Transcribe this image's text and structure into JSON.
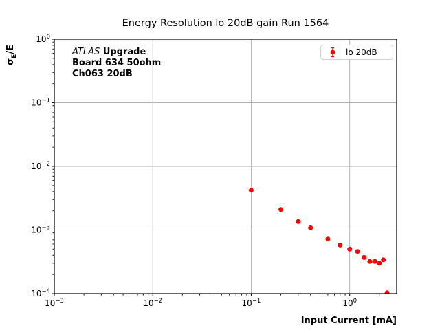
{
  "figure": {
    "title": "Energy Resolution lo 20dB gain Run 1564",
    "xlabel": "Input Current [mA]",
    "ylabel": {
      "sigma": "σ",
      "sub": "E",
      "rest": "/E"
    }
  },
  "annotation": {
    "line1_italic": "ATLAS",
    "line1_bold": "Upgrade",
    "line2": "Board 634 50ohm",
    "line3": "Ch063 20dB"
  },
  "legend": {
    "label": "lo 20dB"
  },
  "colors": {
    "marker": "#ff0000",
    "grid": "#b0b0b0",
    "frame": "#000000",
    "text": "#000000",
    "legend_border": "#d2d2d2"
  },
  "chart_data": {
    "type": "scatter",
    "title": "Energy Resolution lo 20dB gain Run 1564",
    "xlabel": "Input Current [mA]",
    "ylabel": "sigma_E/E",
    "x_scale": "log",
    "y_scale": "log",
    "xlim": [
      0.001,
      3.0
    ],
    "ylim": [
      0.0001,
      1.0
    ],
    "x_tick_exponents": [
      -3,
      -2,
      -1,
      0
    ],
    "y_tick_exponents": [
      0,
      -1,
      -2,
      -3,
      -4
    ],
    "grid": true,
    "legend_position": "upper right",
    "series": [
      {
        "name": "lo 20dB",
        "marker": "errorbar-dot",
        "color": "#ff0000",
        "x": [
          0.1,
          0.2,
          0.3,
          0.4,
          0.6,
          0.8,
          1.0,
          1.2,
          1.4,
          1.6,
          1.8,
          2.0,
          2.2,
          2.4
        ],
        "y": [
          0.0042,
          0.0021,
          0.00135,
          0.00108,
          0.00072,
          0.00058,
          0.0005,
          0.00046,
          0.00037,
          0.00032,
          0.00032,
          0.0003,
          0.00034,
          0.000103
        ]
      }
    ]
  }
}
